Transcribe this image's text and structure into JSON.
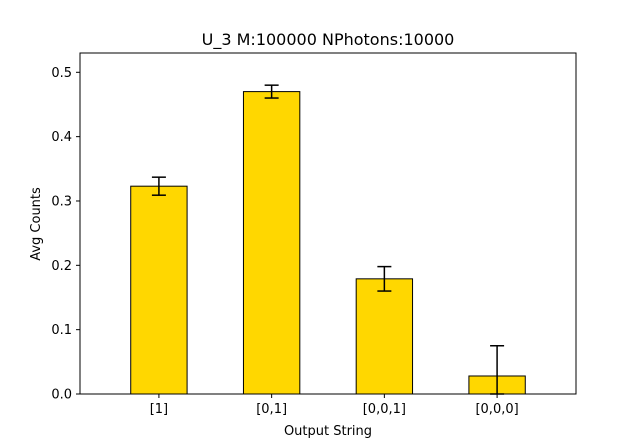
{
  "chart_data": {
    "type": "bar",
    "title": "U_3 M:100000 NPhotons:10000",
    "xlabel": "Output String",
    "ylabel": "Avg Counts",
    "categories": [
      "[1]",
      "[0,1]",
      "[0,0,1]",
      "[0,0,0]"
    ],
    "values": [
      0.323,
      0.47,
      0.179,
      0.028
    ],
    "errors": [
      0.014,
      0.01,
      0.019,
      0.047
    ],
    "ylim": [
      0,
      0.53
    ],
    "yticks": [
      0.0,
      0.1,
      0.2,
      0.3,
      0.4,
      0.5
    ],
    "ytick_labels": [
      "0.0",
      "0.1",
      "0.2",
      "0.3",
      "0.4",
      "0.5"
    ],
    "bar_color": "#FFD700",
    "edge_color": "#000000",
    "grid": false,
    "legend": "none"
  }
}
